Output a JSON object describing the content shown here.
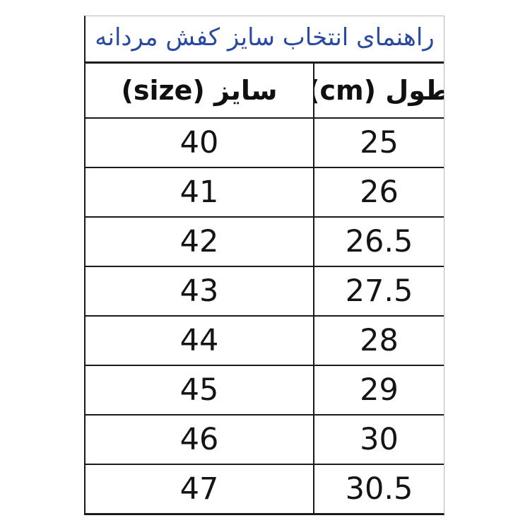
{
  "table": {
    "title": "راهنمای انتخاب سایز کفش مردانه",
    "columns": {
      "size": "سایز (size)",
      "cm": "طول (cm)"
    },
    "rows": [
      {
        "size": "40",
        "cm": "25"
      },
      {
        "size": "41",
        "cm": "26"
      },
      {
        "size": "42",
        "cm": "26.5"
      },
      {
        "size": "43",
        "cm": "27.5"
      },
      {
        "size": "44",
        "cm": "28"
      },
      {
        "size": "45",
        "cm": "29"
      },
      {
        "size": "46",
        "cm": "30"
      },
      {
        "size": "47",
        "cm": "30.5"
      }
    ]
  },
  "colors": {
    "background": "#ffffff",
    "title_text": "#2a4aa2",
    "header_text": "#101010",
    "number_text": "#141414",
    "border_dark": "#1a1a1a",
    "border_light": "#b8b8b8"
  },
  "chart_data": {
    "type": "table",
    "title": "راهنمای انتخاب سایز کفش مردانه",
    "columns": [
      "سایز (size)",
      "طول (cm)"
    ],
    "rows": [
      [
        40,
        25
      ],
      [
        41,
        26
      ],
      [
        42,
        26.5
      ],
      [
        43,
        27.5
      ],
      [
        44,
        28
      ],
      [
        45,
        29
      ],
      [
        46,
        30
      ],
      [
        47,
        30.5
      ]
    ],
    "layout": "title row spans both columns; size column left, length(cm) column right; all values centered"
  }
}
